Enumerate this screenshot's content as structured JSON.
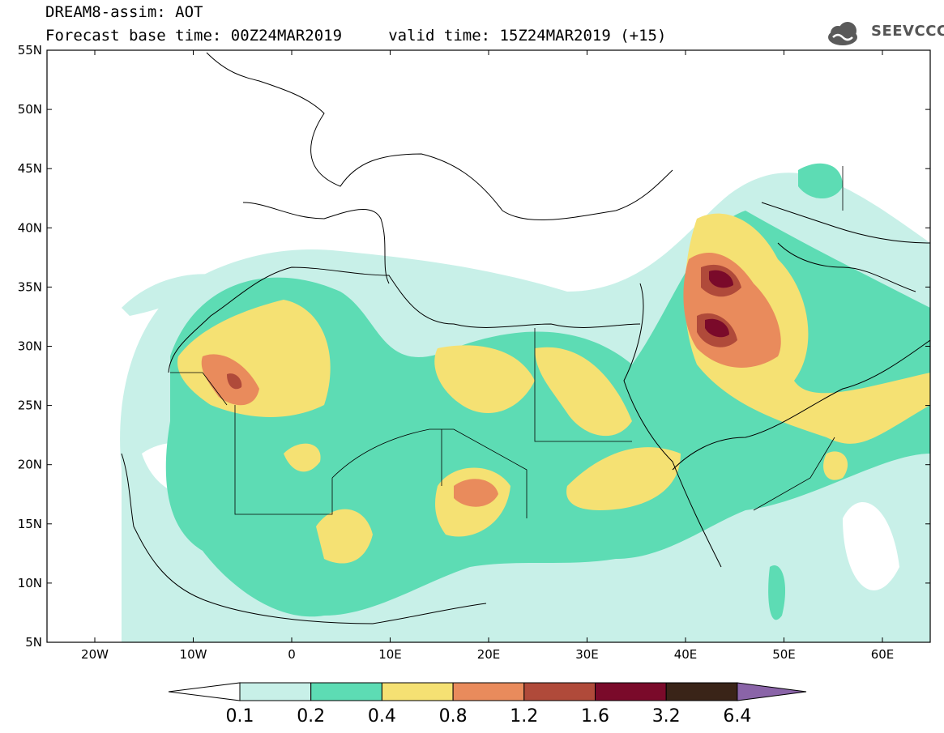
{
  "title": {
    "line1": "DREAM8-assim: AOT",
    "line2": "Forecast base time: 00Z24MAR2019     valid time: 15Z24MAR2019 (+15)"
  },
  "logo": {
    "text": "SEEVCCC",
    "icon": "cloud-icon"
  },
  "map": {
    "lat_labels": [
      "55N",
      "50N",
      "45N",
      "40N",
      "35N",
      "30N",
      "25N",
      "20N",
      "15N",
      "10N",
      "5N"
    ],
    "lon_labels": [
      "20W",
      "10W",
      "0",
      "10E",
      "20E",
      "30E",
      "40E",
      "50E",
      "60E"
    ]
  },
  "colorbar": {
    "labels": [
      "0.1",
      "0.2",
      "0.4",
      "0.8",
      "1.2",
      "1.6",
      "3.2",
      "6.4"
    ],
    "colors": [
      "#ffffff",
      "#c8f0e8",
      "#5ddcb4",
      "#f5e173",
      "#e98b5c",
      "#b04a3a",
      "#7a0a2a",
      "#3a2418",
      "#8a64a8"
    ]
  }
}
